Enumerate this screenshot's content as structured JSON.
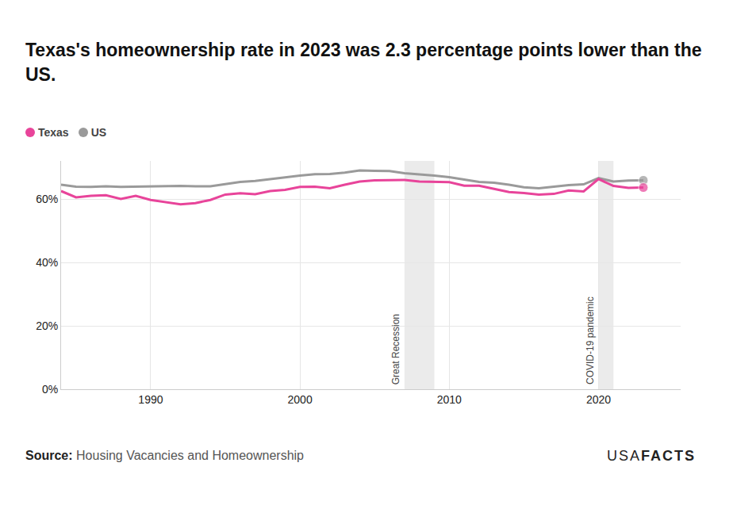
{
  "chart_data": {
    "type": "line",
    "title": "Texas's homeownership rate in 2023 was 2.3 percentage points lower than the US.",
    "x": [
      1984,
      1985,
      1986,
      1987,
      1988,
      1989,
      1990,
      1991,
      1992,
      1993,
      1994,
      1995,
      1996,
      1997,
      1998,
      1999,
      2000,
      2001,
      2002,
      2003,
      2004,
      2005,
      2006,
      2007,
      2008,
      2009,
      2010,
      2011,
      2012,
      2013,
      2014,
      2015,
      2016,
      2017,
      2018,
      2019,
      2020,
      2021,
      2022,
      2023
    ],
    "series": [
      {
        "name": "Texas",
        "color": "#e8449a",
        "values": [
          62.5,
          60.5,
          61.0,
          61.2,
          60.0,
          61.0,
          59.7,
          59.0,
          58.3,
          58.7,
          59.7,
          61.4,
          61.8,
          61.5,
          62.5,
          62.9,
          63.8,
          63.9,
          63.4,
          64.5,
          65.5,
          65.9,
          66.0,
          66.0,
          65.5,
          65.4,
          65.3,
          64.2,
          64.2,
          63.2,
          62.2,
          61.9,
          61.4,
          61.6,
          62.7,
          62.4,
          66.3,
          64.1,
          63.5,
          63.6
        ]
      },
      {
        "name": "US",
        "color": "#9a9a9a",
        "values": [
          64.5,
          63.9,
          63.8,
          64.0,
          63.8,
          63.9,
          63.9,
          64.1,
          64.1,
          64.0,
          64.0,
          64.7,
          65.4,
          65.7,
          66.3,
          66.8,
          67.4,
          67.8,
          67.9,
          68.3,
          69.0,
          68.9,
          68.8,
          68.1,
          67.8,
          67.4,
          66.9,
          66.1,
          65.4,
          65.1,
          64.5,
          63.7,
          63.4,
          63.9,
          64.4,
          64.6,
          66.6,
          65.5,
          65.8,
          65.9
        ]
      }
    ],
    "xlim": [
      1984,
      2025.5
    ],
    "xticks": [
      1990,
      2000,
      2010,
      2020
    ],
    "ylim": [
      0,
      72
    ],
    "yticks": [
      {
        "value": 0,
        "label": "0%"
      },
      {
        "value": 20,
        "label": "20%"
      },
      {
        "value": 40,
        "label": "40%"
      },
      {
        "value": 60,
        "label": "60%"
      }
    ],
    "grid": true,
    "legend": "top-left",
    "marker": "end",
    "shaded_periods": [
      {
        "label": "Great Recession",
        "start": 2007,
        "end": 2009
      },
      {
        "label": "COVID-19 pandemic",
        "start": 2020,
        "end": 2021
      }
    ],
    "source_label": "Source:",
    "source": "Housing Vacancies and Homeownership",
    "logo": {
      "light": "USA",
      "bold": "FACTS"
    }
  }
}
